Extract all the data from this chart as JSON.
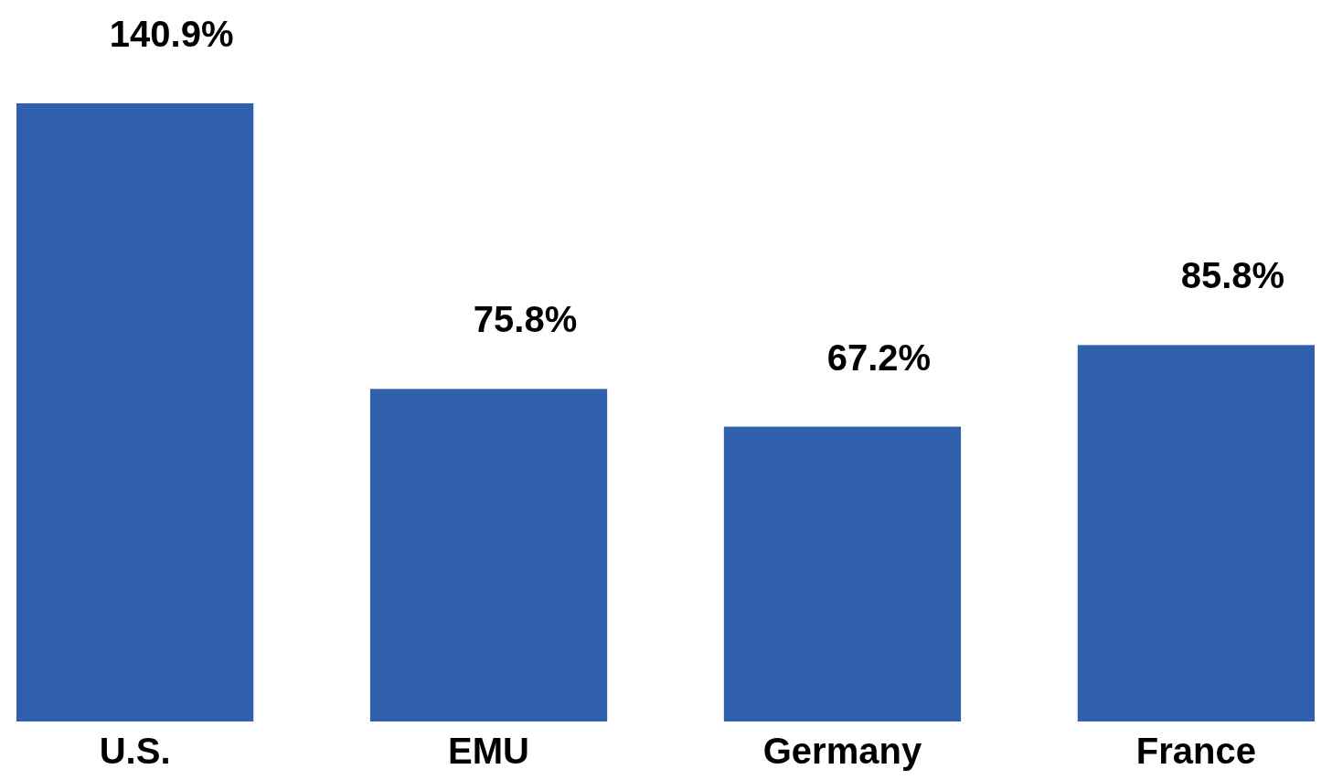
{
  "chart_data": {
    "type": "bar",
    "categories": [
      "U.S.",
      "EMU",
      "Germany",
      "France"
    ],
    "values": [
      140.9,
      75.8,
      67.2,
      85.8
    ],
    "value_labels": [
      "140.9%",
      "75.8%",
      "67.2%",
      "85.8%"
    ],
    "color": "#3060ad"
  }
}
